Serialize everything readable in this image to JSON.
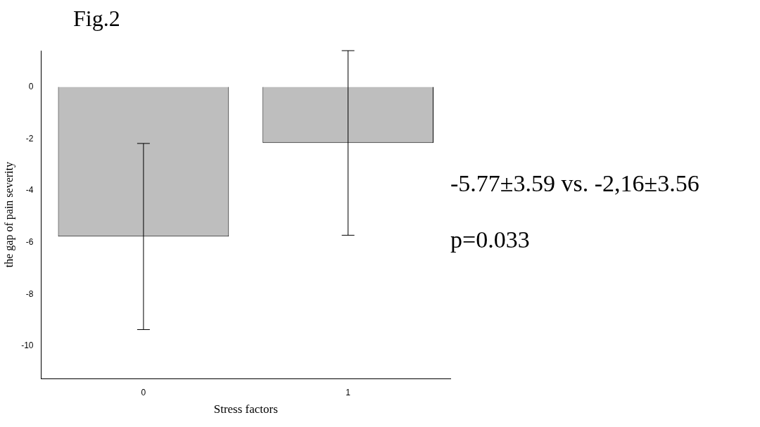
{
  "chart_data": {
    "type": "bar",
    "title": "Fig.2",
    "xlabel": "Stress factors",
    "ylabel": "the gap of pain severity",
    "categories": [
      "0",
      "1"
    ],
    "values": [
      -5.77,
      -2.16
    ],
    "errors": [
      3.59,
      3.56
    ],
    "color": "#bebebe",
    "ylim": [
      -11.25,
      1.4
    ],
    "yticks": [
      0,
      -2,
      -4,
      -6,
      -8,
      -10
    ],
    "grid": false,
    "legend": false,
    "annotations": [
      "-5.77±3.59 vs. -2,16±3.56",
      "p=0.033"
    ]
  }
}
